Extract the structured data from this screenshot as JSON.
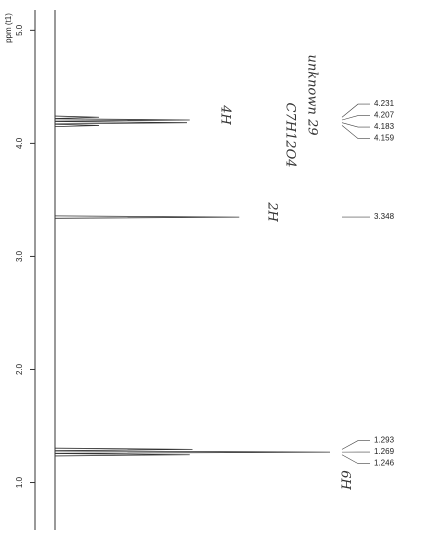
{
  "chart_data": {
    "type": "nmr",
    "ylabel": "ppm (t1)",
    "ylim": [
      5.18,
      0.58
    ],
    "yticks": [
      {
        "value": 5,
        "label": "5.0"
      },
      {
        "value": 4,
        "label": "4.0"
      },
      {
        "value": 3,
        "label": "3.0"
      },
      {
        "value": 2,
        "label": "2.0"
      },
      {
        "value": 1,
        "label": "1.0"
      }
    ],
    "x": [
      4.231,
      4.207,
      4.183,
      4.159,
      3.348,
      1.293,
      1.269,
      1.246
    ],
    "values": [
      16,
      49,
      48,
      16,
      67,
      50,
      100,
      49
    ],
    "color": "#333333",
    "annotations": {
      "sample": "unknown 29",
      "formula": "C7H12O4",
      "h1": "4H",
      "h2": "2H",
      "h3": "6H"
    }
  }
}
